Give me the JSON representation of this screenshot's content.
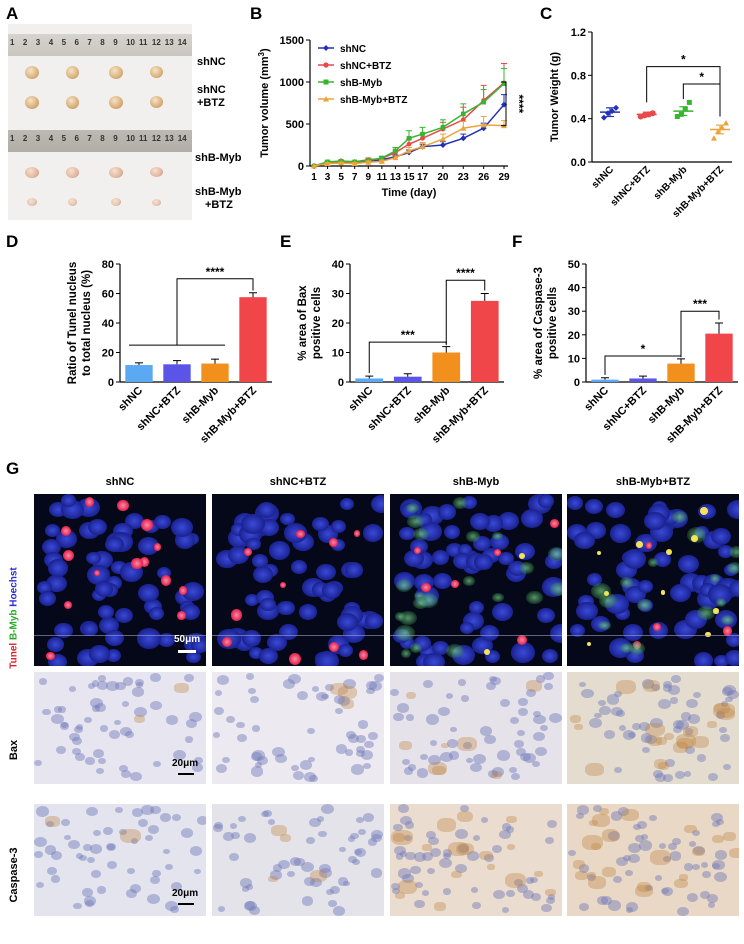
{
  "panels": {
    "A": "A",
    "B": "B",
    "C": "C",
    "D": "D",
    "E": "E",
    "F": "F",
    "G": "G"
  },
  "panelA": {
    "ruler_numbers_top": [
      "1",
      "2",
      "3",
      "4",
      "5",
      "6",
      "7",
      "8",
      "9",
      "10",
      "11",
      "12",
      "13",
      "14"
    ],
    "ruler_numbers_bottom": [
      "1",
      "2",
      "3",
      "4",
      "5",
      "6",
      "7",
      "8",
      "9",
      "10",
      "11",
      "12",
      "13",
      "14"
    ],
    "labels": [
      "shNC",
      "shNC\n+BTZ",
      "shB-Myb",
      "shB-Myb\n+BTZ"
    ],
    "label_lines": {
      "l1": "shNC",
      "l2a": "shNC",
      "l2b": "+BTZ",
      "l3": "shB-Myb",
      "l4a": "shB-Myb",
      "l4b": "+BTZ"
    }
  },
  "colors": {
    "shNC": "#2231b5",
    "shNC+BTZ": "#e8494b",
    "shB-Myb": "#36b52f",
    "shB-Myb+BTZ": "#eca43a",
    "barNC": "#5aa9f2",
    "barNCBTZ": "#5a55e6",
    "barMyb": "#f2901e",
    "barMybBTZ": "#f0464a"
  },
  "chart_data": [
    {
      "id": "B",
      "type": "line",
      "xlabel": "Time (day)",
      "ylabel": "Tumor volume (mm3)",
      "ylabel_main": "Tumor volume (mm",
      "ylabel_sup": "3",
      "ylabel_end": ")",
      "x": [
        1,
        3,
        5,
        7,
        9,
        11,
        13,
        15,
        17,
        20,
        23,
        26,
        29
      ],
      "xticks": [
        "1",
        "3",
        "5",
        "7",
        "9",
        "11",
        "13",
        "15",
        "17",
        "20",
        "23",
        "26",
        "29"
      ],
      "yticks": [
        "0",
        "500",
        "1000",
        "1500"
      ],
      "ylim": [
        0,
        1500
      ],
      "significance": "****",
      "legend": [
        "shNC",
        "shNC+BTZ",
        "shB-Myb",
        "shB-Myb+BTZ"
      ],
      "series": [
        {
          "name": "shNC",
          "values": [
            0,
            40,
            50,
            45,
            50,
            75,
            110,
            160,
            230,
            250,
            330,
            450,
            730
          ],
          "err": [
            0,
            10,
            10,
            10,
            15,
            15,
            20,
            30,
            30,
            40,
            50,
            60,
            120
          ]
        },
        {
          "name": "shNC+BTZ",
          "values": [
            0,
            45,
            60,
            50,
            75,
            90,
            160,
            260,
            330,
            440,
            550,
            780,
            990
          ],
          "err": [
            0,
            10,
            10,
            10,
            20,
            20,
            30,
            60,
            60,
            80,
            150,
            180,
            230
          ]
        },
        {
          "name": "shB-Myb",
          "values": [
            0,
            50,
            55,
            50,
            65,
            95,
            180,
            330,
            380,
            460,
            620,
            760,
            980
          ],
          "err": [
            0,
            10,
            10,
            10,
            15,
            20,
            40,
            90,
            80,
            90,
            120,
            150,
            180
          ]
        },
        {
          "name": "shB-Myb+BTZ",
          "values": [
            0,
            30,
            35,
            30,
            45,
            55,
            100,
            180,
            230,
            320,
            450,
            490,
            480
          ],
          "err": [
            0,
            10,
            10,
            10,
            15,
            15,
            20,
            40,
            50,
            60,
            80,
            100,
            60
          ]
        }
      ]
    },
    {
      "id": "C",
      "type": "scatter",
      "ylabel": "Tumor Weight (g)",
      "categories": [
        "shNC",
        "shNC+BTZ",
        "shB-Myb",
        "shB-Myb+BTZ"
      ],
      "yticks": [
        "0.0",
        "0.4",
        "0.8",
        "1.2"
      ],
      "ylim": [
        0,
        1.2
      ],
      "means": [
        0.46,
        0.44,
        0.47,
        0.3
      ],
      "sem": [
        0.04,
        0.02,
        0.04,
        0.04
      ],
      "points": [
        [
          0.41,
          0.45,
          0.47,
          0.5
        ],
        [
          0.42,
          0.43,
          0.44,
          0.45
        ],
        [
          0.42,
          0.44,
          0.49,
          0.55
        ],
        [
          0.22,
          0.28,
          0.32,
          0.36
        ]
      ],
      "significance": [
        "*",
        "*"
      ]
    },
    {
      "id": "D",
      "type": "bar",
      "ylabel_lines": [
        "Ratio of Tunel nucleus",
        "to total nucleus (%)"
      ],
      "categories": [
        "shNC",
        "shNC+BTZ",
        "shB-Myb",
        "shB-Myb+BTZ"
      ],
      "values": [
        11.5,
        12,
        12.5,
        57.5
      ],
      "err": [
        1.5,
        2.5,
        3,
        3
      ],
      "yticks": [
        "0",
        "20",
        "40",
        "60",
        "80"
      ],
      "ylim": [
        0,
        80
      ],
      "significance": "****"
    },
    {
      "id": "E",
      "type": "bar",
      "ylabel_lines": [
        "% area of Bax",
        "positive cells"
      ],
      "categories": [
        "shNC",
        "shNC+BTZ",
        "shB-Myb",
        "shB-Myb+BTZ"
      ],
      "values": [
        1.2,
        1.8,
        10,
        27.5
      ],
      "err": [
        0.8,
        1,
        2,
        2.5
      ],
      "yticks": [
        "0",
        "10",
        "20",
        "30",
        "40"
      ],
      "ylim": [
        0,
        40
      ],
      "significance": [
        "***",
        "****"
      ]
    },
    {
      "id": "F",
      "type": "bar",
      "ylabel_lines": [
        "% area of Caspase-3",
        "positive cells"
      ],
      "categories": [
        "shNC",
        "shNC+BTZ",
        "shB-Myb",
        "shB-Myb+BTZ"
      ],
      "values": [
        1,
        1.5,
        7.8,
        20.5
      ],
      "err": [
        0.8,
        1,
        2,
        4.5
      ],
      "yticks": [
        "0",
        "10",
        "20",
        "30",
        "40",
        "50"
      ],
      "ylim": [
        0,
        50
      ],
      "significance": [
        "*",
        "***"
      ]
    }
  ],
  "panelG": {
    "column_titles": [
      "shNC",
      "shNC+BTZ",
      "shB-Myb",
      "shB-Myb+BTZ"
    ],
    "row_label_fluor": {
      "t1": "Tunel",
      "t2": " B-Myb",
      "t3": " Hoechst"
    },
    "row_labels": [
      "Bax",
      "Caspase-3"
    ],
    "scale_fluor": "50μm",
    "scale_ihc": "20μm"
  }
}
